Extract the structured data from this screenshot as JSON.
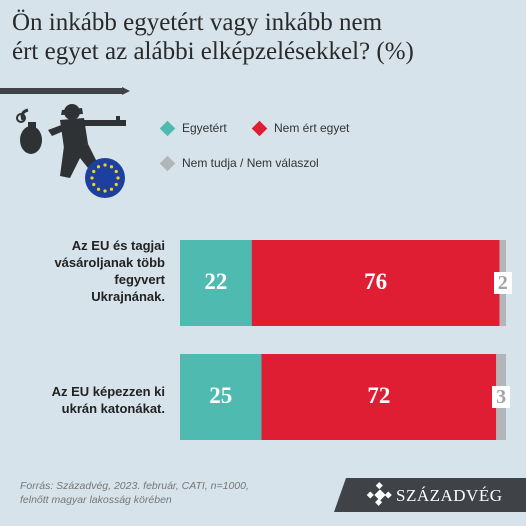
{
  "title": "Ön inkább egyetért vagy inkább nem\nért egyet az alábbi elképzelésekkel? (%)",
  "legend": [
    {
      "label": "Egyetért",
      "color": "#4fbaaf"
    },
    {
      "label": "Nem ért egyet",
      "color": "#e01e33"
    },
    {
      "label": "Nem tudja / Nem válaszol",
      "color": "#b3b6b9"
    }
  ],
  "illustration": {
    "icon": "soldier-with-grenade-and-eu-flag-icon"
  },
  "chart_data": {
    "type": "bar",
    "orientation": "horizontal",
    "stacked": true,
    "categories": [
      "Az EU és tagjai\nvásároljanak több\nfegyvert\nUkrajnának.",
      "Az EU képezzen ki\nukrán katonákat."
    ],
    "series": [
      {
        "name": "Egyetért",
        "values": [
          22,
          25
        ],
        "color": "#4fbaaf"
      },
      {
        "name": "Nem ért egyet",
        "values": [
          76,
          72
        ],
        "color": "#e01e33"
      },
      {
        "name": "Nem tudja / Nem válaszol",
        "values": [
          2,
          3
        ],
        "color": "#b3b6b9"
      }
    ],
    "title": "Ön inkább egyetért vagy inkább nem ért egyet az alábbi elképzelésekkel? (%)",
    "xlim": [
      0,
      100
    ],
    "grid": false,
    "legend_position": "top"
  },
  "source": "Forrás: Századvég, 2023. február, CATI, n=1000,\nfelnőtt magyar lakosság körében",
  "brand": {
    "name": "SZÁZADVÉG",
    "bg": "#3f4347"
  }
}
